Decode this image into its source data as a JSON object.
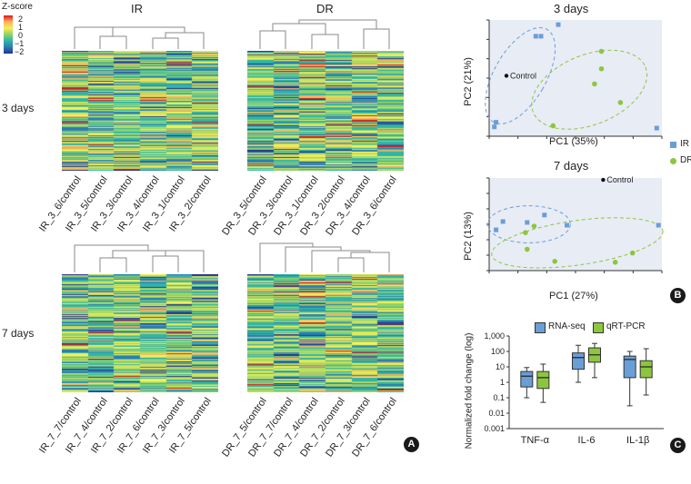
{
  "legend": {
    "title": "Z-score",
    "ticks": [
      "2",
      "1",
      "0",
      "−1",
      "−2"
    ]
  },
  "groups": {
    "ir": "IR",
    "dr": "DR"
  },
  "rows": {
    "r3": "3 days",
    "r7": "7 days"
  },
  "heatmaps": {
    "ir3": {
      "samples": [
        "IR_3_6/control",
        "IR_3_5/control",
        "IR_3_3/control",
        "IR_3_4/control",
        "IR_3_1/control",
        "IR_3_2/control"
      ]
    },
    "dr3": {
      "samples": [
        "DR_3_5/control",
        "DR_3_3/control",
        "DR_3_1/control",
        "DR_3_2/control",
        "DR_3_4/control",
        "DR_3_6/control"
      ]
    },
    "ir7": {
      "samples": [
        "IR_7_7/control",
        "IR_7_4/control",
        "IR_7_2/control",
        "IR_7_6/control",
        "IR_7_3/control",
        "IR_7_5/control"
      ]
    },
    "dr7": {
      "samples": [
        "DR_7_5/control",
        "DR_7_7/control",
        "DR_7_4/control",
        "DR_7_2/control",
        "DR_7_3/control",
        "DR_7_6/control"
      ]
    }
  },
  "panels": {
    "a": "A",
    "b": "B",
    "c": "C"
  },
  "pca": {
    "legend": {
      "ir": "IR",
      "dr": "DR"
    },
    "colors": {
      "ir": "#6a9ed6",
      "dr": "#8cc63f",
      "control": "#111111"
    },
    "p3": {
      "title": "3 days",
      "xlabel": "PC1 (35%)",
      "ylabel": "PC2 (21%)",
      "control_label": "Control",
      "xlim": [
        0,
        100
      ],
      "ylim": [
        0,
        100
      ],
      "control": [
        10,
        52
      ],
      "ir": [
        [
          4,
          12
        ],
        [
          3,
          8
        ],
        [
          27,
          86
        ],
        [
          30,
          86
        ],
        [
          40,
          96
        ],
        [
          97,
          7
        ]
      ],
      "dr": [
        [
          37,
          9
        ],
        [
          61,
          45
        ],
        [
          65,
          73
        ],
        [
          65,
          58
        ],
        [
          76,
          29
        ]
      ]
    },
    "p7": {
      "title": "7 days",
      "xlabel": "PC1 (27%)",
      "ylabel": "PC2 (13%)",
      "control_label": "Control",
      "xlim": [
        0,
        100
      ],
      "ylim": [
        0,
        100
      ],
      "control": [
        66,
        98
      ],
      "ir": [
        [
          4,
          44
        ],
        [
          8,
          53
        ],
        [
          22,
          52
        ],
        [
          32,
          60
        ],
        [
          45,
          49
        ],
        [
          98,
          49
        ]
      ],
      "dr": [
        [
          21,
          41
        ],
        [
          26,
          48
        ],
        [
          22,
          23
        ],
        [
          38,
          10
        ],
        [
          73,
          9
        ],
        [
          83,
          19
        ]
      ]
    }
  },
  "chart_data": {
    "type": "boxplot",
    "ylabel": "Normalized fold change (log)",
    "yscale": "log",
    "ylim": [
      0.001,
      1000
    ],
    "yticks": [
      "1,000",
      "100",
      "10",
      "1",
      "0.1",
      "0.01",
      "0.001"
    ],
    "categories": [
      "TNF-α",
      "IL-6",
      "IL-1β"
    ],
    "legend": [
      "RNA-seq",
      "qRT-PCR"
    ],
    "series": [
      {
        "name": "RNA-seq",
        "color": "#6a9ed6",
        "boxes": [
          {
            "min": 0.1,
            "q1": 0.5,
            "median": 2.5,
            "q3": 5,
            "max": 9
          },
          {
            "min": 1,
            "q1": 7,
            "median": 40,
            "q3": 80,
            "max": 250
          },
          {
            "min": 0.03,
            "q1": 2,
            "median": 30,
            "q3": 50,
            "max": 100
          }
        ]
      },
      {
        "name": "qRT-PCR",
        "color": "#8cc63f",
        "boxes": [
          {
            "min": 0.05,
            "q1": 0.4,
            "median": 2,
            "q3": 5,
            "max": 15
          },
          {
            "min": 2,
            "q1": 20,
            "median": 60,
            "q3": 170,
            "max": 330
          },
          {
            "min": 0.15,
            "q1": 2,
            "median": 10,
            "q3": 25,
            "max": 150
          }
        ]
      }
    ]
  }
}
